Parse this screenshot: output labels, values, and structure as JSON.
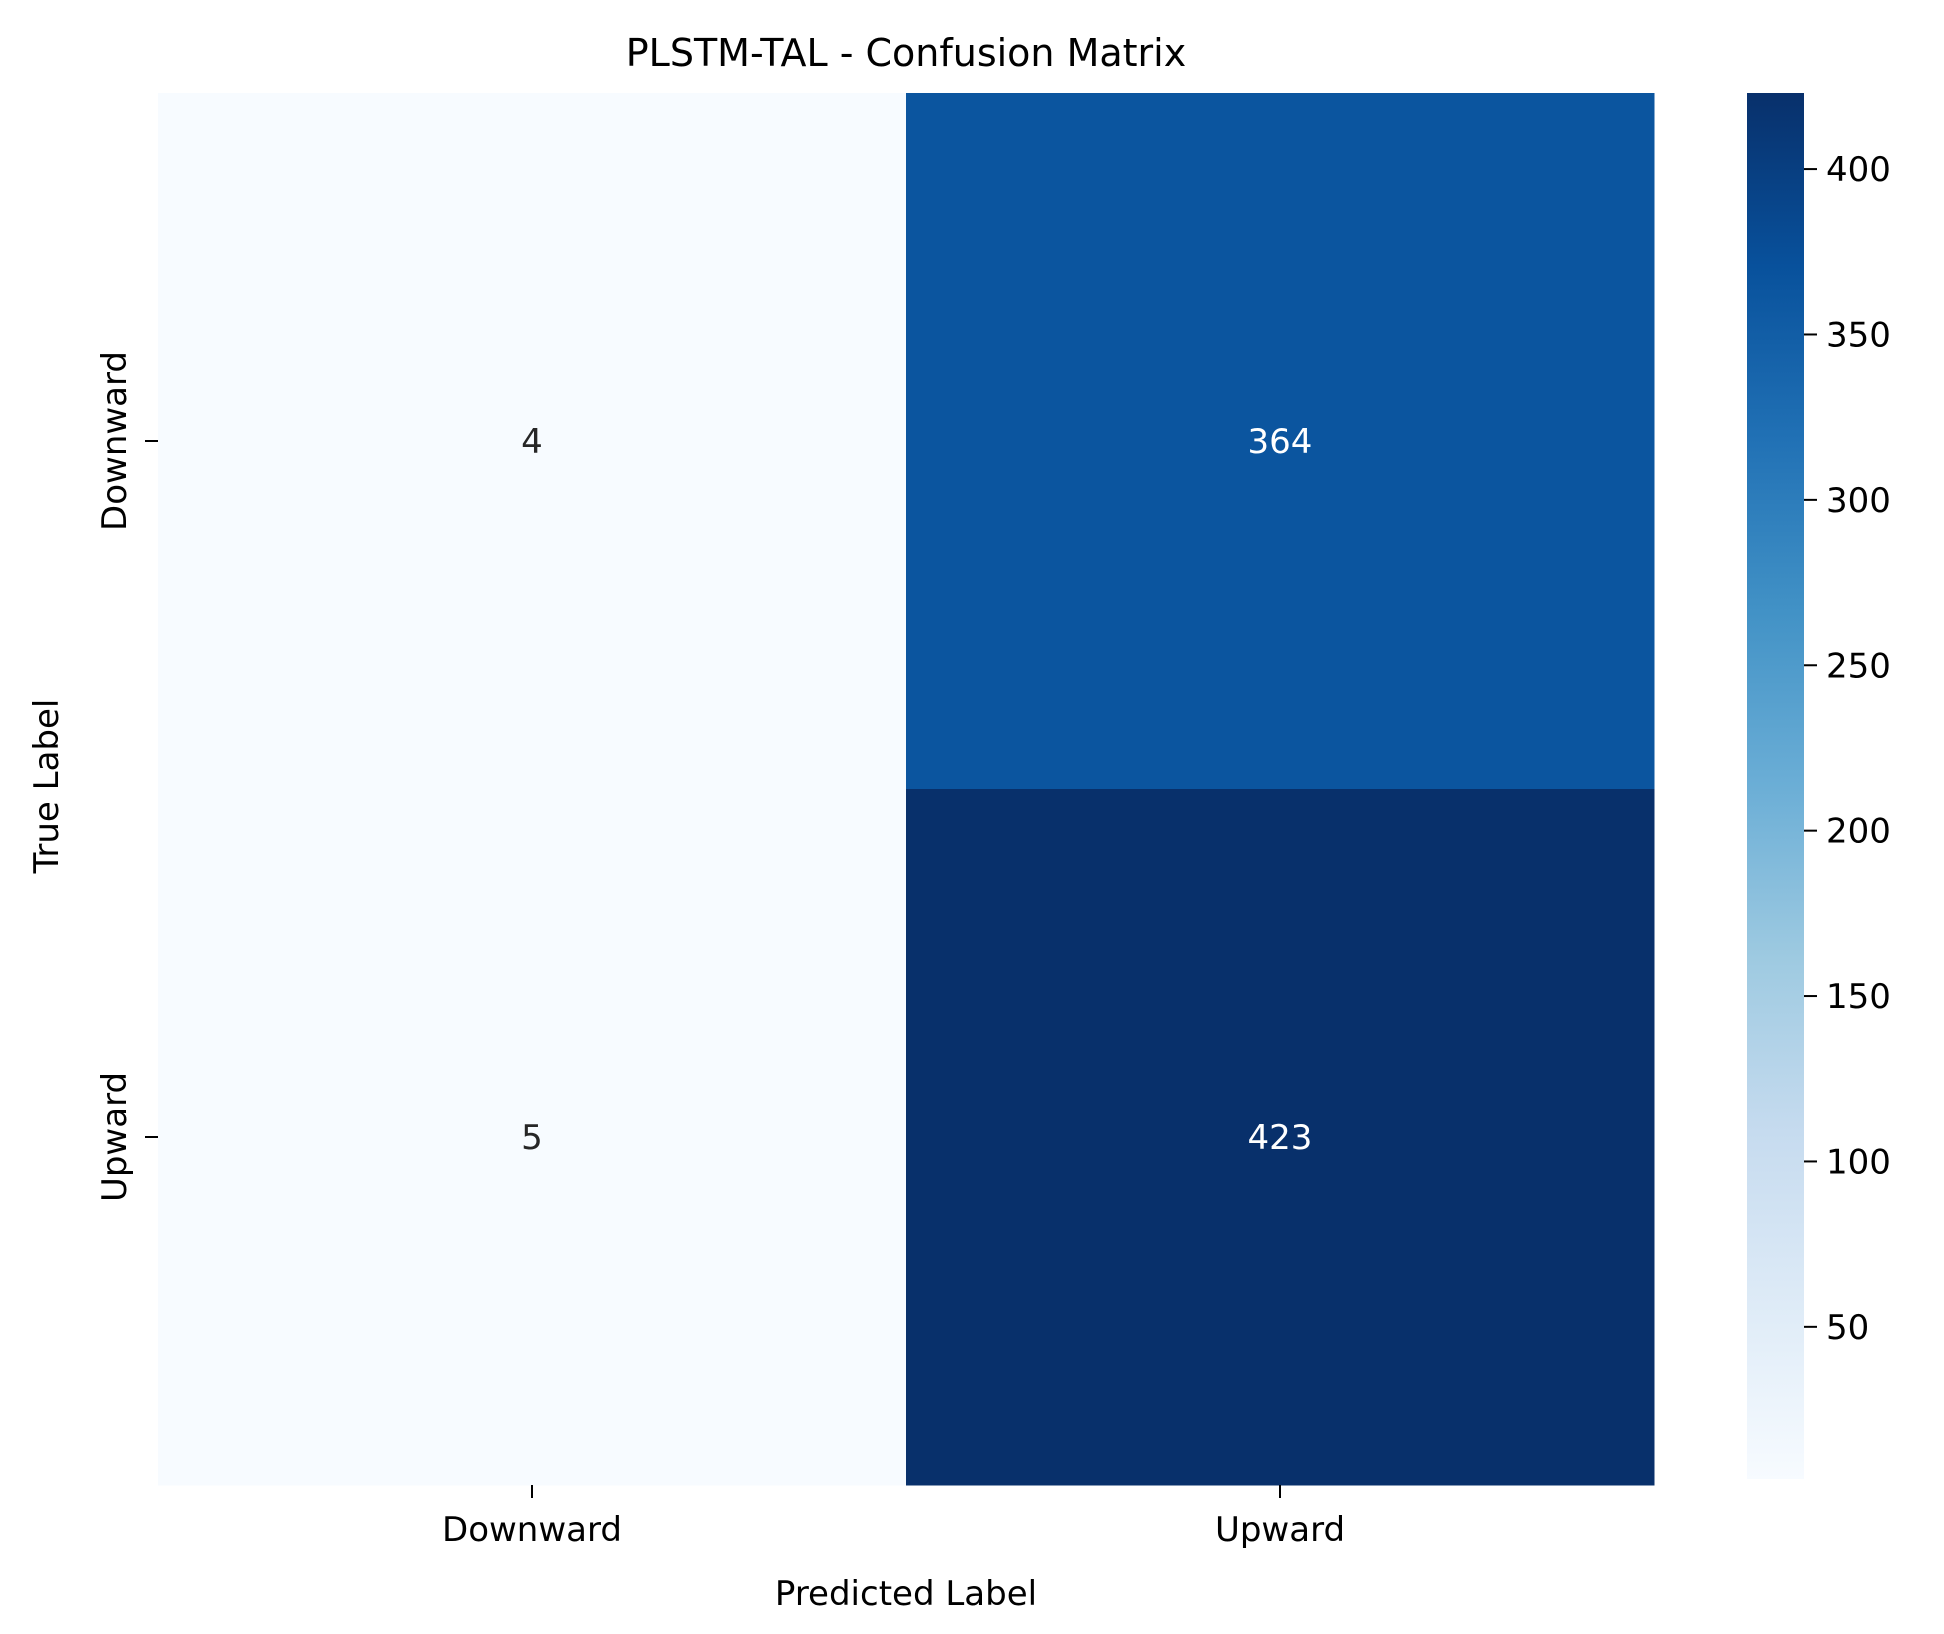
{
  "chart_data": {
    "type": "heatmap",
    "title": "PLSTM-TAL - Confusion Matrix",
    "xlabel": "Predicted Label",
    "ylabel": "True Label",
    "x_categories": [
      "Downward",
      "Upward"
    ],
    "y_categories": [
      "Downward",
      "Upward"
    ],
    "matrix": [
      [
        4,
        364
      ],
      [
        5,
        423
      ]
    ],
    "colormap": "Blues",
    "colorbar": {
      "min": 4,
      "max": 423,
      "ticks": [
        50,
        100,
        150,
        200,
        250,
        300,
        350,
        400
      ]
    },
    "grid": false
  }
}
